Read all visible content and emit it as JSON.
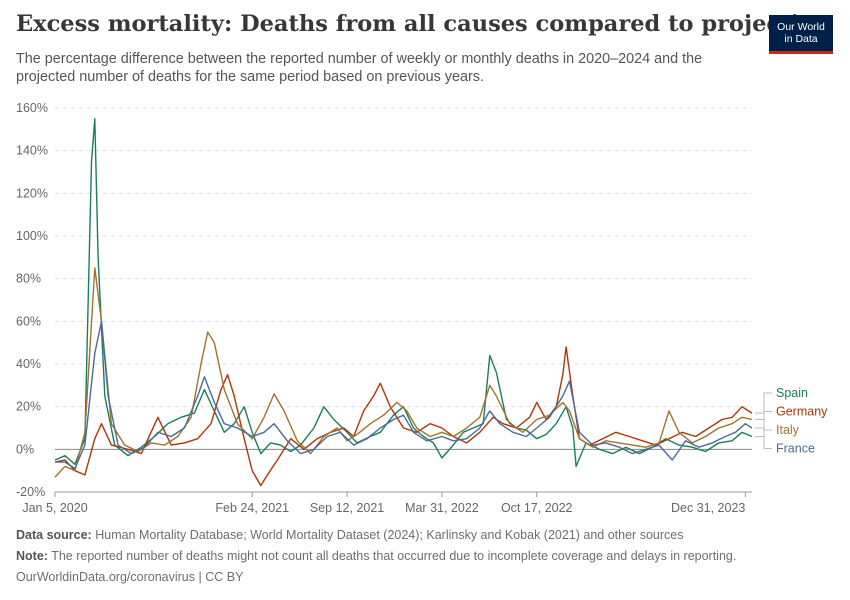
{
  "header": {
    "title": "Excess mortality: Deaths from all causes compared to projection",
    "subtitle": "The percentage difference between the reported number of weekly or monthly deaths in 2020–2024 and the projected number of deaths for the same period based on previous years.",
    "logo_line1": "Our World",
    "logo_line2": "in Data"
  },
  "footer": {
    "source_label": "Data source:",
    "source_text": "Human Mortality Database; World Mortality Dataset (2024); Karlinsky and Kobak (2021) and other sources",
    "note_label": "Note:",
    "note_text": "The reported number of deaths might not count all deaths that occurred due to incomplete coverage and delays in reporting.",
    "credit": "OurWorldinData.org/coronavirus | CC BY"
  },
  "colors": {
    "spain": "#18805a",
    "germany": "#b13507",
    "italy": "#a2732c",
    "france": "#4c6a9c",
    "grid": "#dddddd",
    "zero": "#888888"
  },
  "chart_data": {
    "type": "line",
    "title": "Excess mortality: Deaths from all causes compared to projection",
    "ylabel": "",
    "ylim": [
      -20,
      160
    ],
    "xlim": [
      "2020-01-05",
      "2024-01-14"
    ],
    "y_ticks": [
      -20,
      0,
      20,
      40,
      60,
      80,
      100,
      120,
      140,
      160
    ],
    "y_tick_labels": [
      "-20%",
      "0%",
      "20%",
      "40%",
      "60%",
      "80%",
      "100%",
      "120%",
      "140%",
      "160%"
    ],
    "x_ticks": [
      "2020-01-05",
      "2021-02-24",
      "2021-09-12",
      "2022-03-31",
      "2022-10-17",
      "2023-12-31"
    ],
    "x_tick_labels": [
      "Jan 5, 2020",
      "Feb 24, 2021",
      "Sep 12, 2021",
      "Mar 31, 2022",
      "Oct 17, 2022",
      "Dec 31, 2023"
    ],
    "grid": true,
    "legend_placement": "right, at line ends",
    "series": [
      {
        "name": "Spain",
        "color": "#18805a",
        "points": [
          [
            "2020-01-05",
            -5
          ],
          [
            "2020-01-26",
            -3
          ],
          [
            "2020-02-16",
            -7
          ],
          [
            "2020-03-08",
            5
          ],
          [
            "2020-03-22",
            135
          ],
          [
            "2020-03-29",
            155
          ],
          [
            "2020-04-05",
            90
          ],
          [
            "2020-04-19",
            25
          ],
          [
            "2020-05-10",
            2
          ],
          [
            "2020-06-07",
            -3
          ],
          [
            "2020-07-05",
            1
          ],
          [
            "2020-08-02",
            6
          ],
          [
            "2020-08-30",
            12
          ],
          [
            "2020-09-27",
            15
          ],
          [
            "2020-10-25",
            17
          ],
          [
            "2020-11-15",
            28
          ],
          [
            "2020-12-06",
            18
          ],
          [
            "2020-12-27",
            8
          ],
          [
            "2021-01-17",
            12
          ],
          [
            "2021-02-07",
            20
          ],
          [
            "2021-02-24",
            8
          ],
          [
            "2021-03-14",
            -2
          ],
          [
            "2021-04-04",
            3
          ],
          [
            "2021-04-25",
            2
          ],
          [
            "2021-05-16",
            -1
          ],
          [
            "2021-06-06",
            2
          ],
          [
            "2021-07-04",
            10
          ],
          [
            "2021-07-25",
            20
          ],
          [
            "2021-08-15",
            14
          ],
          [
            "2021-09-12",
            8
          ],
          [
            "2021-10-03",
            3
          ],
          [
            "2021-10-31",
            6
          ],
          [
            "2021-11-21",
            8
          ],
          [
            "2021-12-19",
            16
          ],
          [
            "2022-01-09",
            20
          ],
          [
            "2022-01-30",
            10
          ],
          [
            "2022-02-20",
            6
          ],
          [
            "2022-03-13",
            3
          ],
          [
            "2022-03-31",
            -4
          ],
          [
            "2022-04-24",
            2
          ],
          [
            "2022-05-15",
            8
          ],
          [
            "2022-06-05",
            10
          ],
          [
            "2022-06-26",
            12
          ],
          [
            "2022-07-10",
            44
          ],
          [
            "2022-07-24",
            36
          ],
          [
            "2022-08-14",
            14
          ],
          [
            "2022-09-04",
            10
          ],
          [
            "2022-09-25",
            9
          ],
          [
            "2022-10-17",
            5
          ],
          [
            "2022-11-06",
            7
          ],
          [
            "2022-11-27",
            12
          ],
          [
            "2022-12-18",
            20
          ],
          [
            "2023-01-01",
            10
          ],
          [
            "2023-01-08",
            -8
          ],
          [
            "2023-01-29",
            3
          ],
          [
            "2023-02-26",
            0
          ],
          [
            "2023-03-26",
            -2
          ],
          [
            "2023-04-23",
            1
          ],
          [
            "2023-05-21",
            -2
          ],
          [
            "2023-06-18",
            1
          ],
          [
            "2023-07-16",
            5
          ],
          [
            "2023-08-13",
            2
          ],
          [
            "2023-09-10",
            1
          ],
          [
            "2023-10-08",
            -1
          ],
          [
            "2023-11-05",
            3
          ],
          [
            "2023-12-03",
            4
          ],
          [
            "2023-12-24",
            8
          ],
          [
            "2024-01-14",
            6
          ]
        ]
      },
      {
        "name": "Germany",
        "color": "#b13507",
        "points": [
          [
            "2020-01-05",
            -6
          ],
          [
            "2020-01-26",
            -5
          ],
          [
            "2020-02-16",
            -10
          ],
          [
            "2020-03-08",
            -12
          ],
          [
            "2020-03-29",
            5
          ],
          [
            "2020-04-12",
            12
          ],
          [
            "2020-05-03",
            2
          ],
          [
            "2020-06-07",
            0
          ],
          [
            "2020-07-05",
            -2
          ],
          [
            "2020-08-09",
            15
          ],
          [
            "2020-09-06",
            2
          ],
          [
            "2020-10-04",
            3
          ],
          [
            "2020-11-01",
            5
          ],
          [
            "2020-11-29",
            12
          ],
          [
            "2020-12-20",
            28
          ],
          [
            "2021-01-03",
            35
          ],
          [
            "2021-01-17",
            25
          ],
          [
            "2021-02-07",
            5
          ],
          [
            "2021-02-24",
            -10
          ],
          [
            "2021-03-14",
            -17
          ],
          [
            "2021-03-28",
            -12
          ],
          [
            "2021-04-18",
            -5
          ],
          [
            "2021-05-16",
            5
          ],
          [
            "2021-06-13",
            0
          ],
          [
            "2021-07-11",
            5
          ],
          [
            "2021-08-08",
            8
          ],
          [
            "2021-09-05",
            10
          ],
          [
            "2021-09-26",
            6
          ],
          [
            "2021-10-17",
            18
          ],
          [
            "2021-11-07",
            25
          ],
          [
            "2021-11-21",
            31
          ],
          [
            "2021-12-12",
            20
          ],
          [
            "2022-01-09",
            10
          ],
          [
            "2022-02-06",
            8
          ],
          [
            "2022-03-06",
            12
          ],
          [
            "2022-03-31",
            10
          ],
          [
            "2022-04-24",
            6
          ],
          [
            "2022-05-22",
            3
          ],
          [
            "2022-06-19",
            8
          ],
          [
            "2022-07-17",
            15
          ],
          [
            "2022-08-07",
            12
          ],
          [
            "2022-09-04",
            10
          ],
          [
            "2022-10-02",
            15
          ],
          [
            "2022-10-17",
            22
          ],
          [
            "2022-11-06",
            14
          ],
          [
            "2022-11-27",
            20
          ],
          [
            "2022-12-11",
            35
          ],
          [
            "2022-12-18",
            48
          ],
          [
            "2023-01-01",
            25
          ],
          [
            "2023-01-15",
            5
          ],
          [
            "2023-02-05",
            2
          ],
          [
            "2023-03-05",
            5
          ],
          [
            "2023-04-02",
            8
          ],
          [
            "2023-04-30",
            6
          ],
          [
            "2023-05-28",
            4
          ],
          [
            "2023-06-25",
            2
          ],
          [
            "2023-07-23",
            5
          ],
          [
            "2023-08-20",
            8
          ],
          [
            "2023-09-17",
            6
          ],
          [
            "2023-10-15",
            10
          ],
          [
            "2023-11-12",
            14
          ],
          [
            "2023-12-03",
            15
          ],
          [
            "2023-12-24",
            20
          ],
          [
            "2024-01-14",
            17
          ]
        ]
      },
      {
        "name": "Italy",
        "color": "#a2732c",
        "points": [
          [
            "2020-01-05",
            -13
          ],
          [
            "2020-01-26",
            -8
          ],
          [
            "2020-02-16",
            -10
          ],
          [
            "2020-03-08",
            8
          ],
          [
            "2020-03-29",
            85
          ],
          [
            "2020-04-12",
            60
          ],
          [
            "2020-05-03",
            12
          ],
          [
            "2020-05-31",
            2
          ],
          [
            "2020-06-28",
            -1
          ],
          [
            "2020-07-26",
            3
          ],
          [
            "2020-08-23",
            2
          ],
          [
            "2020-09-20",
            6
          ],
          [
            "2020-10-18",
            15
          ],
          [
            "2020-11-08",
            40
          ],
          [
            "2020-11-22",
            55
          ],
          [
            "2020-12-06",
            50
          ],
          [
            "2020-12-27",
            28
          ],
          [
            "2021-01-24",
            12
          ],
          [
            "2021-02-24",
            5
          ],
          [
            "2021-03-21",
            15
          ],
          [
            "2021-04-11",
            26
          ],
          [
            "2021-05-02",
            18
          ],
          [
            "2021-05-30",
            4
          ],
          [
            "2021-06-27",
            -2
          ],
          [
            "2021-07-25",
            6
          ],
          [
            "2021-08-22",
            10
          ],
          [
            "2021-09-12",
            4
          ],
          [
            "2021-10-03",
            7
          ],
          [
            "2021-10-31",
            12
          ],
          [
            "2021-11-28",
            16
          ],
          [
            "2021-12-26",
            22
          ],
          [
            "2022-01-16",
            18
          ],
          [
            "2022-02-06",
            10
          ],
          [
            "2022-03-06",
            6
          ],
          [
            "2022-03-31",
            8
          ],
          [
            "2022-04-24",
            6
          ],
          [
            "2022-05-22",
            10
          ],
          [
            "2022-06-19",
            15
          ],
          [
            "2022-07-10",
            30
          ],
          [
            "2022-07-24",
            25
          ],
          [
            "2022-08-21",
            12
          ],
          [
            "2022-09-18",
            8
          ],
          [
            "2022-10-17",
            14
          ],
          [
            "2022-11-13",
            16
          ],
          [
            "2022-12-11",
            22
          ],
          [
            "2022-12-25",
            18
          ],
          [
            "2023-01-15",
            5
          ],
          [
            "2023-02-12",
            1
          ],
          [
            "2023-03-12",
            4
          ],
          [
            "2023-04-09",
            3
          ],
          [
            "2023-05-07",
            2
          ],
          [
            "2023-06-04",
            1
          ],
          [
            "2023-07-02",
            3
          ],
          [
            "2023-07-23",
            18
          ],
          [
            "2023-08-13",
            8
          ],
          [
            "2023-09-10",
            3
          ],
          [
            "2023-10-08",
            6
          ],
          [
            "2023-11-05",
            10
          ],
          [
            "2023-12-03",
            12
          ],
          [
            "2023-12-24",
            15
          ],
          [
            "2024-01-14",
            14
          ]
        ]
      },
      {
        "name": "France",
        "color": "#4c6a9c",
        "points": [
          [
            "2020-01-05",
            -6
          ],
          [
            "2020-01-26",
            -6
          ],
          [
            "2020-02-16",
            -9
          ],
          [
            "2020-03-08",
            2
          ],
          [
            "2020-03-29",
            45
          ],
          [
            "2020-04-12",
            60
          ],
          [
            "2020-04-26",
            25
          ],
          [
            "2020-05-17",
            2
          ],
          [
            "2020-06-14",
            -2
          ],
          [
            "2020-07-12",
            1
          ],
          [
            "2020-08-09",
            8
          ],
          [
            "2020-09-06",
            6
          ],
          [
            "2020-10-04",
            10
          ],
          [
            "2020-11-01",
            25
          ],
          [
            "2020-11-15",
            34
          ],
          [
            "2020-12-06",
            22
          ],
          [
            "2020-12-27",
            12
          ],
          [
            "2021-01-24",
            10
          ],
          [
            "2021-02-24",
            6
          ],
          [
            "2021-03-21",
            8
          ],
          [
            "2021-04-11",
            12
          ],
          [
            "2021-05-09",
            4
          ],
          [
            "2021-06-06",
            -2
          ],
          [
            "2021-07-04",
            0
          ],
          [
            "2021-08-01",
            6
          ],
          [
            "2021-08-29",
            8
          ],
          [
            "2021-09-26",
            2
          ],
          [
            "2021-10-24",
            5
          ],
          [
            "2021-11-21",
            10
          ],
          [
            "2021-12-19",
            14
          ],
          [
            "2022-01-09",
            16
          ],
          [
            "2022-01-30",
            8
          ],
          [
            "2022-02-27",
            4
          ],
          [
            "2022-03-31",
            6
          ],
          [
            "2022-04-24",
            4
          ],
          [
            "2022-05-22",
            5
          ],
          [
            "2022-06-19",
            10
          ],
          [
            "2022-07-10",
            18
          ],
          [
            "2022-07-31",
            12
          ],
          [
            "2022-08-28",
            8
          ],
          [
            "2022-09-25",
            6
          ],
          [
            "2022-10-17",
            10
          ],
          [
            "2022-11-13",
            15
          ],
          [
            "2022-12-11",
            25
          ],
          [
            "2022-12-25",
            32
          ],
          [
            "2023-01-15",
            8
          ],
          [
            "2023-02-12",
            2
          ],
          [
            "2023-03-12",
            3
          ],
          [
            "2023-04-09",
            1
          ],
          [
            "2023-05-07",
            -2
          ],
          [
            "2023-06-04",
            0
          ],
          [
            "2023-07-02",
            2
          ],
          [
            "2023-07-30",
            -5
          ],
          [
            "2023-08-27",
            4
          ],
          [
            "2023-09-24",
            1
          ],
          [
            "2023-10-22",
            3
          ],
          [
            "2023-11-19",
            6
          ],
          [
            "2023-12-10",
            8
          ],
          [
            "2023-12-31",
            12
          ],
          [
            "2024-01-14",
            10
          ]
        ]
      }
    ]
  }
}
